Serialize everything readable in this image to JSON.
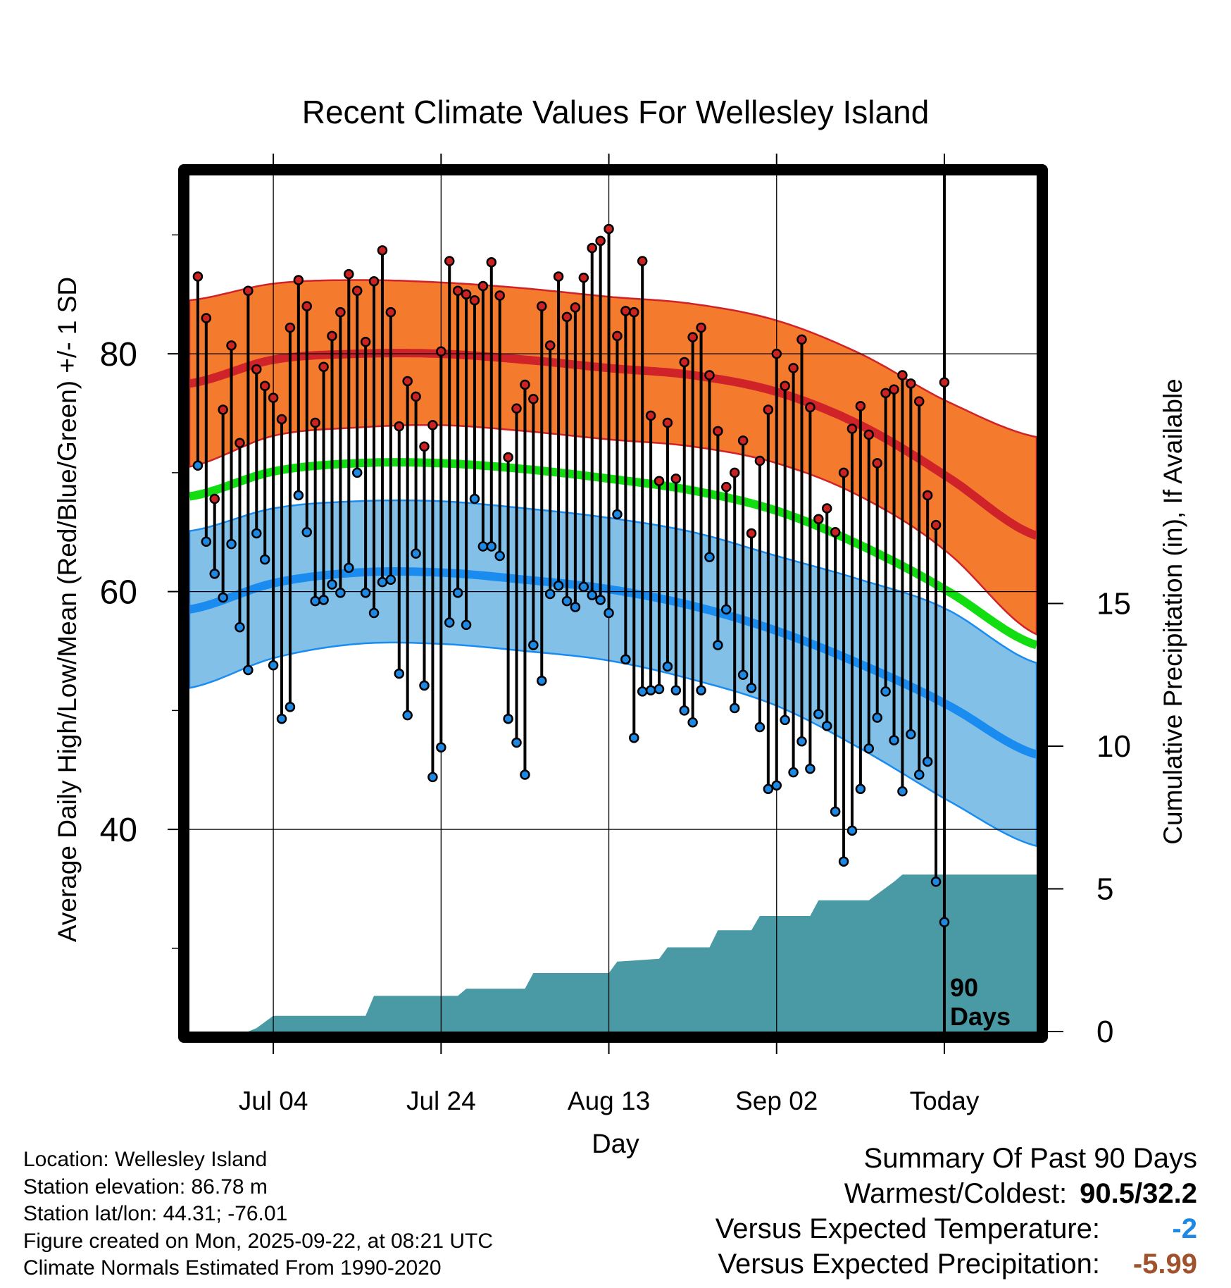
{
  "chart_data": {
    "type": "line",
    "title": "Recent Climate Values For Wellesley Island",
    "xlabel": "Day",
    "ylabel": "Average Daily High/Low/Mean (Red/Blue/Green) +/- 1 SD",
    "y2label": "Cumulative Precipitation (in), If Available",
    "xlim": [
      -10,
      91
    ],
    "ylim": [
      23,
      95
    ],
    "y2lim": [
      0,
      30
    ],
    "x_ticks": [
      {
        "x": 0,
        "label": "Jul 04"
      },
      {
        "x": 20,
        "label": "Jul 24"
      },
      {
        "x": 40,
        "label": "Aug 13"
      },
      {
        "x": 60,
        "label": "Sep 02"
      },
      {
        "x": 80,
        "label": "Today"
      }
    ],
    "y_ticks": [
      {
        "y": 40,
        "label": "40"
      },
      {
        "y": 60,
        "label": "60"
      },
      {
        "y": 80,
        "label": "80"
      }
    ],
    "y_minor_ticks": [
      30,
      50,
      70,
      90
    ],
    "y2_ticks": [
      {
        "y": 0,
        "label": "0"
      },
      {
        "y": 5,
        "label": "5"
      },
      {
        "y": 10,
        "label": "10"
      },
      {
        "y": 15,
        "label": "15"
      }
    ],
    "today_x": 80,
    "window_label_line1": "90",
    "window_label_line2": "Days",
    "normals": {
      "x": [
        -10,
        0,
        10,
        20,
        30,
        40,
        50,
        60,
        70,
        80,
        91
      ],
      "high_mean": [
        77.5,
        79.5,
        80.0,
        80.0,
        79.5,
        78.8,
        78.2,
        76.8,
        74.0,
        69.8,
        64.7
      ],
      "high_sd": [
        7.0,
        6.4,
        6.2,
        6.0,
        6.0,
        6.0,
        6.0,
        6.0,
        6.0,
        6.3,
        8.3
      ],
      "low_mean": [
        58.5,
        60.7,
        61.6,
        61.6,
        61.0,
        60.2,
        58.8,
        56.7,
        53.9,
        50.6,
        46.3
      ],
      "low_sd": [
        6.6,
        6.3,
        6.0,
        6.0,
        6.0,
        6.0,
        6.2,
        6.3,
        7.1,
        8.0,
        7.7
      ],
      "mean": [
        68.0,
        70.1,
        70.8,
        70.8,
        70.3,
        69.5,
        68.5,
        66.8,
        63.9,
        60.2,
        55.5
      ]
    },
    "series": [
      {
        "name": "Daily High",
        "color": "#cc2222",
        "values": [
          86.5,
          83.0,
          67.8,
          75.3,
          80.7,
          72.5,
          85.3,
          78.7,
          77.3,
          76.3,
          74.5,
          82.2,
          86.2,
          84.0,
          74.2,
          78.9,
          81.5,
          83.5,
          86.7,
          85.3,
          81.0,
          86.1,
          88.7,
          83.5,
          73.9,
          77.7,
          76.4,
          72.2,
          74.0,
          80.2,
          87.8,
          85.3,
          85.0,
          84.5,
          85.7,
          87.7,
          84.9,
          71.3,
          75.4,
          77.4,
          76.2,
          84.0,
          80.7,
          86.5,
          83.1,
          83.9,
          86.4,
          88.9,
          89.5,
          90.5,
          81.5,
          83.6,
          83.5,
          87.8,
          74.8,
          69.3,
          74.2,
          69.5,
          79.3,
          81.4,
          82.2,
          78.2,
          73.5,
          68.8,
          70.0,
          72.7,
          64.9,
          71.0,
          75.3,
          80.0,
          77.3,
          78.8,
          81.2,
          75.5,
          66.1,
          67.0,
          65.0,
          70.0,
          73.7,
          75.6,
          73.2,
          70.8,
          76.7,
          77.0,
          78.2,
          77.5,
          76.0,
          68.1,
          65.6,
          77.6
        ]
      },
      {
        "name": "Daily Low",
        "color": "#1e88e5",
        "values": [
          70.6,
          64.2,
          61.5,
          59.5,
          64.0,
          57.0,
          53.4,
          64.9,
          62.7,
          53.8,
          49.3,
          50.3,
          68.1,
          65.0,
          59.2,
          59.3,
          60.6,
          59.9,
          62.0,
          70.0,
          59.9,
          58.2,
          60.8,
          61.0,
          53.1,
          49.6,
          63.2,
          52.1,
          44.4,
          46.9,
          57.4,
          59.9,
          57.2,
          67.8,
          63.8,
          63.8,
          63.0,
          49.3,
          47.3,
          44.6,
          55.5,
          52.5,
          59.8,
          60.5,
          59.2,
          58.7,
          60.4,
          59.7,
          59.3,
          58.2,
          66.5,
          54.3,
          47.7,
          51.6,
          51.7,
          51.8,
          53.7,
          51.7,
          50.0,
          49.0,
          51.7,
          62.9,
          55.5,
          58.5,
          50.2,
          53.0,
          51.9,
          48.6,
          43.4,
          43.7,
          49.2,
          44.8,
          47.4,
          45.1,
          49.7,
          48.7,
          41.5,
          37.3,
          39.9,
          43.4,
          46.8,
          49.4,
          51.6,
          47.5,
          43.2,
          48.0,
          44.6,
          45.7,
          35.6,
          32.2
        ]
      },
      {
        "name": "Cumulative Precipitation",
        "color": "#4a9aa5",
        "axis": "y2",
        "x": [
          -10,
          -3,
          -2,
          0,
          11,
          12,
          22,
          23,
          30,
          31,
          40,
          41,
          46,
          47,
          52,
          53,
          57,
          58,
          64,
          65,
          70,
          71,
          74,
          75,
          91
        ],
        "values": [
          0,
          0,
          0.12,
          0.55,
          0.55,
          1.25,
          1.25,
          1.5,
          1.5,
          2.05,
          2.05,
          2.45,
          2.55,
          2.95,
          2.95,
          3.55,
          3.55,
          4.05,
          4.05,
          4.6,
          4.6,
          4.6,
          5.25,
          5.5,
          5.5
        ]
      }
    ]
  },
  "footer": {
    "location": "Location: Wellesley Island",
    "elevation": "Station elevation: 86.78 m",
    "latlon": "Station lat/lon: 44.31; -76.01",
    "created": "Figure created on Mon, 2025-09-22, at 08:21 UTC",
    "normals_period": "Climate Normals Estimated From 1990-2020"
  },
  "summary": {
    "title": "Summary Of Past 90 Days",
    "warmest_coldest_label": "Warmest/Coldest:",
    "warmest_coldest_value": "90.5/32.2",
    "temp_label": "Versus Expected Temperature:",
    "temp_value": "-2",
    "precip_label": "Versus Expected Precipitation:",
    "precip_value": "-5.99"
  },
  "colors": {
    "high_band": "#f47a2e",
    "high_line": "#cf2229",
    "low_band": "#82c0e8",
    "low_line": "#1a8cf0",
    "mean_line": "#11dd11",
    "precip_fill": "#4a9aa5",
    "temp_summary": "#1e88e5",
    "precip_summary": "#a0522d"
  }
}
